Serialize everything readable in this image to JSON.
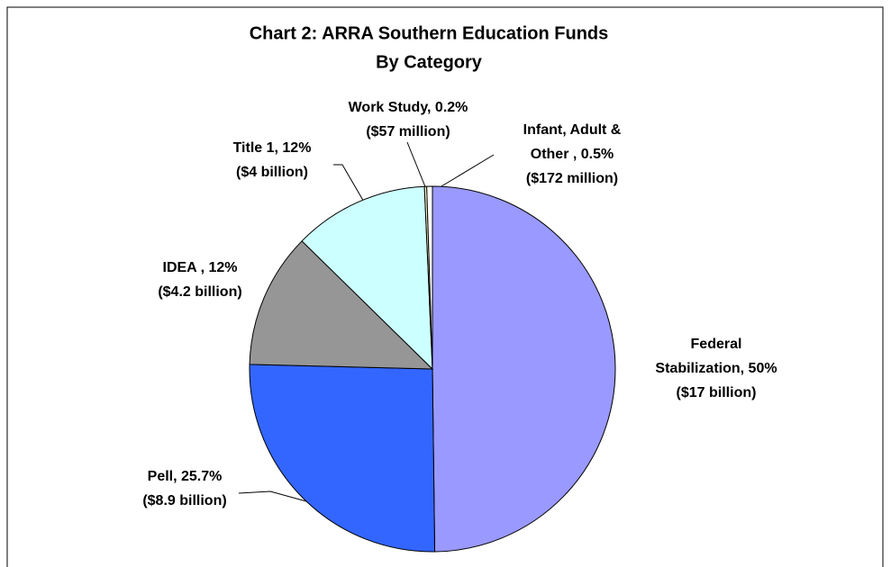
{
  "chart_data": {
    "type": "pie",
    "title": [
      "Chart 2: ARRA Southern Education Funds",
      "By Category"
    ],
    "categories": [
      "Federal Stabilization",
      "Pell",
      "IDEA",
      "Title 1",
      "Work Study",
      "Infant, Adult & Other"
    ],
    "values": [
      50,
      25.7,
      12,
      12,
      0.2,
      0.5
    ],
    "value_labels": [
      [
        "Federal",
        "Stabilization, 50%",
        "($17 billion)"
      ],
      [
        "Pell, 25.7%",
        "($8.9 billion)"
      ],
      [
        "IDEA , 12%",
        "($4.2 billion)"
      ],
      [
        "Title 1, 12%",
        "($4 billion)"
      ],
      [
        "Work Study, 0.2%",
        "($57 million)"
      ],
      [
        "Infant, Adult &",
        "Other , 0.5%",
        "($172 million)"
      ]
    ],
    "colors": [
      "#9999ff",
      "#3366ff",
      "#969696",
      "#ccffff",
      "#ffffcc",
      "#ffffff"
    ]
  }
}
